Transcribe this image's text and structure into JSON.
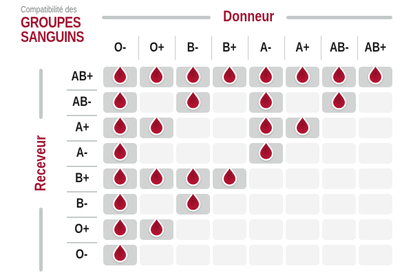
{
  "title": {
    "eyebrow": "Compatibilité des",
    "line1": "GROUPES",
    "line2": "SANGUINS"
  },
  "donor_axis_label": "Donneur",
  "receiver_axis_label": "Receveur",
  "donors": [
    "O-",
    "O+",
    "B-",
    "B+",
    "A-",
    "A+",
    "AB-",
    "AB+"
  ],
  "receivers": [
    "AB+",
    "AB-",
    "A+",
    "A-",
    "B+",
    "B-",
    "O+",
    "O-"
  ],
  "compatibility": [
    [
      1,
      1,
      1,
      1,
      1,
      1,
      1,
      1
    ],
    [
      1,
      0,
      1,
      0,
      1,
      0,
      1,
      0
    ],
    [
      1,
      1,
      0,
      0,
      1,
      1,
      0,
      0
    ],
    [
      1,
      0,
      0,
      0,
      1,
      0,
      0,
      0
    ],
    [
      1,
      1,
      1,
      1,
      0,
      0,
      0,
      0
    ],
    [
      1,
      0,
      1,
      0,
      0,
      0,
      0,
      0
    ],
    [
      1,
      1,
      0,
      0,
      0,
      0,
      0,
      0
    ],
    [
      1,
      0,
      0,
      0,
      0,
      0,
      0,
      0
    ]
  ],
  "colors": {
    "accent_red": "#A31330",
    "drop_fill": "#AE1230",
    "drop_core": "#8C0E25",
    "drop_edge": "#BB142F",
    "cell_filled": "#D2D4D4",
    "cell_empty": "#F2F3F2",
    "divider_gray": "#C7CBCB",
    "axis_line_gray": "#C4C8C8",
    "heading_dark": "#1C1C1C",
    "eyebrow_gray": "#7E8081",
    "background": "#FFFFFF"
  },
  "chart_data": {
    "type": "heatmap",
    "title": "Compatibilité des GROUPES SANGUINS",
    "x_axis_label": "Donneur",
    "y_axis_label": "Receveur",
    "x_categories": [
      "O-",
      "O+",
      "B-",
      "B+",
      "A-",
      "A+",
      "AB-",
      "AB+"
    ],
    "y_categories": [
      "AB+",
      "AB-",
      "A+",
      "A-",
      "B+",
      "B-",
      "O+",
      "O-"
    ],
    "values": [
      [
        1,
        1,
        1,
        1,
        1,
        1,
        1,
        1
      ],
      [
        1,
        0,
        1,
        0,
        1,
        0,
        1,
        0
      ],
      [
        1,
        1,
        0,
        0,
        1,
        1,
        0,
        0
      ],
      [
        1,
        0,
        0,
        0,
        1,
        0,
        0,
        0
      ],
      [
        1,
        1,
        1,
        1,
        0,
        0,
        0,
        0
      ],
      [
        1,
        0,
        1,
        0,
        0,
        0,
        0,
        0
      ],
      [
        1,
        1,
        0,
        0,
        0,
        0,
        0,
        0
      ],
      [
        1,
        0,
        0,
        0,
        0,
        0,
        0,
        0
      ]
    ],
    "marker": "blood-drop = compatible, empty cell = incompatible",
    "legend_position": "none",
    "grid": false
  }
}
